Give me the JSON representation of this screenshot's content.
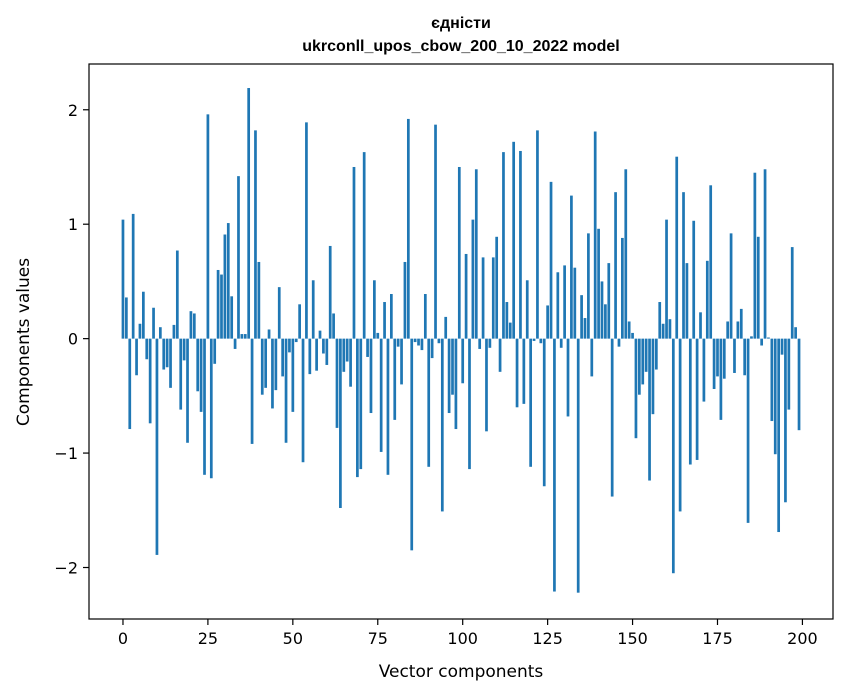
{
  "chart_data": {
    "type": "bar",
    "title_line1": "єдністи",
    "title_line2": "ukrconll_upos_cbow_200_10_2022 model",
    "xlabel": "Vector components",
    "ylabel": "Components values",
    "xlim": [
      -10,
      209
    ],
    "ylim": [
      -2.45,
      2.4
    ],
    "xticks": [
      0,
      25,
      50,
      75,
      100,
      125,
      150,
      175,
      200
    ],
    "yticks": [
      -2,
      -1,
      0,
      1,
      2
    ],
    "ytick_labels": [
      "−2",
      "−1",
      "0",
      "1",
      "2"
    ],
    "bar_color": "#1f77b4",
    "grid": false,
    "values": [
      1.04,
      0.36,
      -0.79,
      1.09,
      -0.32,
      0.13,
      0.41,
      -0.18,
      -0.74,
      0.27,
      -1.89,
      0.1,
      -0.27,
      -0.25,
      -0.43,
      0.12,
      0.77,
      -0.62,
      -0.19,
      -0.91,
      0.24,
      0.22,
      -0.46,
      -0.64,
      -1.19,
      1.96,
      -1.22,
      -0.22,
      0.6,
      0.56,
      0.91,
      1.01,
      0.37,
      -0.09,
      1.42,
      0.04,
      0.04,
      2.19,
      -0.92,
      1.82,
      0.67,
      -0.49,
      -0.43,
      0.08,
      -0.61,
      -0.45,
      0.45,
      -0.33,
      -0.91,
      -0.12,
      -0.64,
      -0.03,
      0.3,
      -1.08,
      1.89,
      -0.31,
      0.51,
      -0.28,
      0.07,
      -0.13,
      -0.23,
      0.81,
      0.22,
      -0.78,
      -1.48,
      -0.29,
      -0.2,
      -0.42,
      1.5,
      -1.21,
      -1.14,
      1.63,
      -0.16,
      -0.65,
      0.51,
      0.05,
      -0.99,
      0.32,
      -1.19,
      0.39,
      -0.71,
      -0.07,
      -0.4,
      0.67,
      1.92,
      -1.85,
      -0.03,
      -0.06,
      -0.1,
      0.39,
      -1.12,
      -0.17,
      1.87,
      -0.04,
      -1.51,
      0.19,
      -0.65,
      -0.49,
      -0.79,
      1.5,
      -0.39,
      0.74,
      -1.14,
      1.04,
      1.48,
      -0.09,
      0.71,
      -0.81,
      -0.08,
      0.71,
      0.89,
      -0.29,
      1.63,
      0.32,
      0.14,
      1.72,
      -0.6,
      1.64,
      -0.57,
      0.51,
      -1.12,
      -0.02,
      1.82,
      -0.04,
      -1.29,
      0.29,
      1.37,
      -2.21,
      0.58,
      -0.08,
      0.64,
      -0.68,
      1.25,
      0.62,
      -2.22,
      0.38,
      0.18,
      0.92,
      -0.33,
      1.81,
      0.96,
      0.5,
      0.3,
      0.66,
      -1.38,
      1.28,
      -0.07,
      0.88,
      1.48,
      0.15,
      0.05,
      -0.87,
      -0.49,
      -0.4,
      -0.29,
      -1.24,
      -0.66,
      -0.27,
      0.32,
      0.13,
      1.04,
      0.17,
      -2.05,
      1.59,
      -1.51,
      1.28,
      0.66,
      -1.1,
      1.03,
      -1.06,
      0.23,
      -0.55,
      0.68,
      1.34,
      -0.44,
      -0.33,
      -0.71,
      -0.35,
      0.15,
      0.92,
      -0.3,
      0.15,
      0.26,
      -0.32,
      -1.61,
      0.02,
      1.45,
      0.89,
      -0.06,
      1.48,
      0.01,
      -0.72,
      -1.01,
      -1.69,
      -0.14,
      -1.43,
      -0.62,
      0.8,
      0.1,
      -0.8
    ]
  }
}
